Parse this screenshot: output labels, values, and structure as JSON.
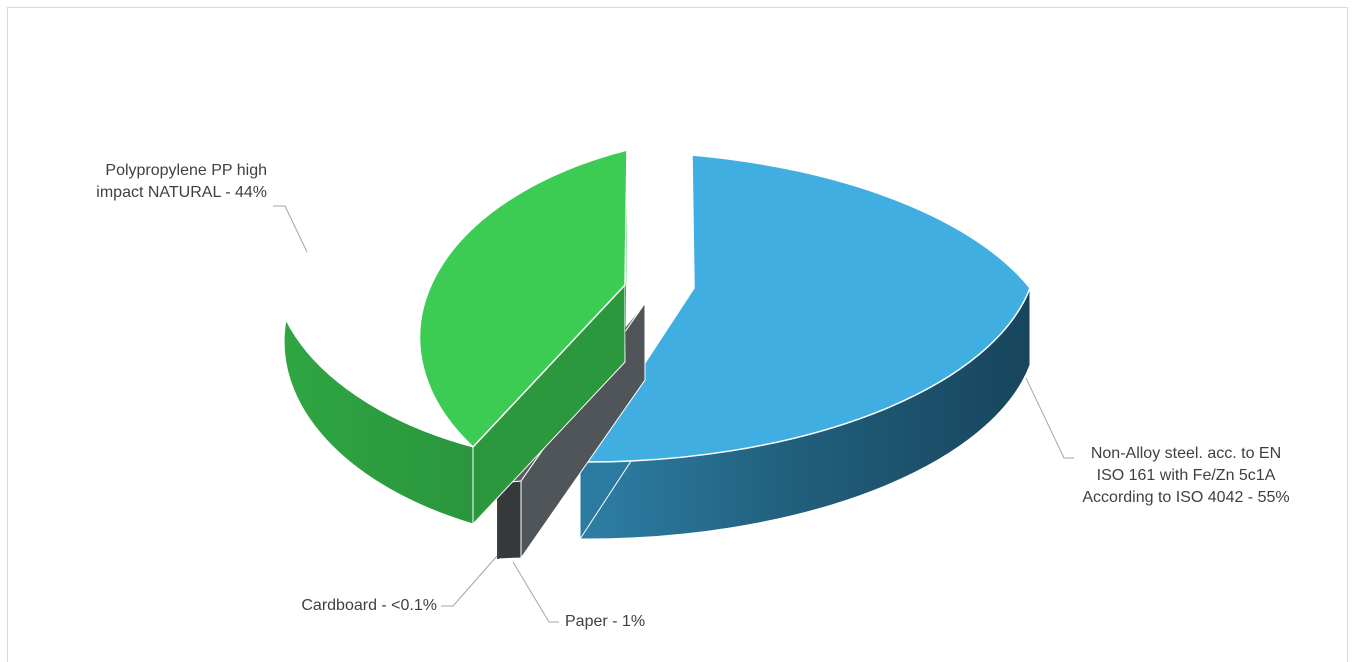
{
  "chart_data": {
    "type": "pie",
    "style": "3d-exploded",
    "slices": [
      {
        "label": "Non-Alloy steel. acc. to EN ISO 161 with Fe/Zn 5c1A According to ISO 4042",
        "display_lines": [
          "Non-Alloy steel. acc. to EN",
          "ISO 161 with Fe/Zn 5c1A",
          "According to ISO 4042 - 55%"
        ],
        "value": 55,
        "color": "#41AEE2"
      },
      {
        "label": "Cardboard",
        "display_lines": [
          "Cardboard - <0.1%"
        ],
        "value": 0.1,
        "color": "#404040"
      },
      {
        "label": "Paper",
        "display_lines": [
          "Paper - 1%"
        ],
        "value": 1,
        "color": "#505559"
      },
      {
        "label": "Polypropylene PP high impact NATURAL",
        "display_lines": [
          "Polypropylene PP high",
          "impact NATURAL - 44%"
        ],
        "value": 44,
        "color": "#3CCB53"
      }
    ],
    "legend": "none",
    "title": ""
  }
}
